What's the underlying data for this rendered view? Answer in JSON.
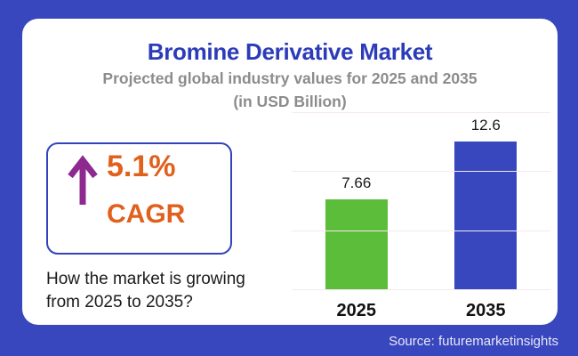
{
  "colors": {
    "frame_blue": "#3847BE",
    "card_bg": "#FFFFFF",
    "title_blue": "#2C3CB9",
    "subtitle_gray": "#8C8C8C",
    "accent_orange": "#E0601C",
    "arrow_purple": "#8E2990",
    "box_border": "#3243BC",
    "gridline": "#F5EAEA",
    "label_black": "#1B1B1B",
    "source_text": "#E7E8F6"
  },
  "header": {
    "title": "Bromine Derivative Market",
    "subtitle_line1": "Projected global industry values for 2025 and 2035",
    "subtitle_line2": "(in USD Billion)"
  },
  "cagr": {
    "arrow_icon": "up-arrow",
    "value": "5.1%",
    "label": "CAGR"
  },
  "caption": {
    "line1": "How the market is growing",
    "line2": "from 2025 to 2035?"
  },
  "chart_data": {
    "type": "bar",
    "title": "Bromine Derivative Market",
    "subtitle": "Projected global industry values for 2025 and 2035 (in USD Billion)",
    "categories": [
      "2025",
      "2035"
    ],
    "values": [
      7.66,
      12.6
    ],
    "value_labels": [
      "7.66",
      "12.6"
    ],
    "bar_colors": [
      "#5BBD39",
      "#3847BE"
    ],
    "xlabel": "",
    "ylabel": "USD Billion",
    "ylim": [
      0,
      15
    ],
    "gridline_values": [
      0,
      5,
      10,
      15
    ],
    "grid": "horizontal-only",
    "legend": "none",
    "y_tick_labels_visible": false
  },
  "footer": {
    "source": "Source: futuremarketinsights"
  }
}
